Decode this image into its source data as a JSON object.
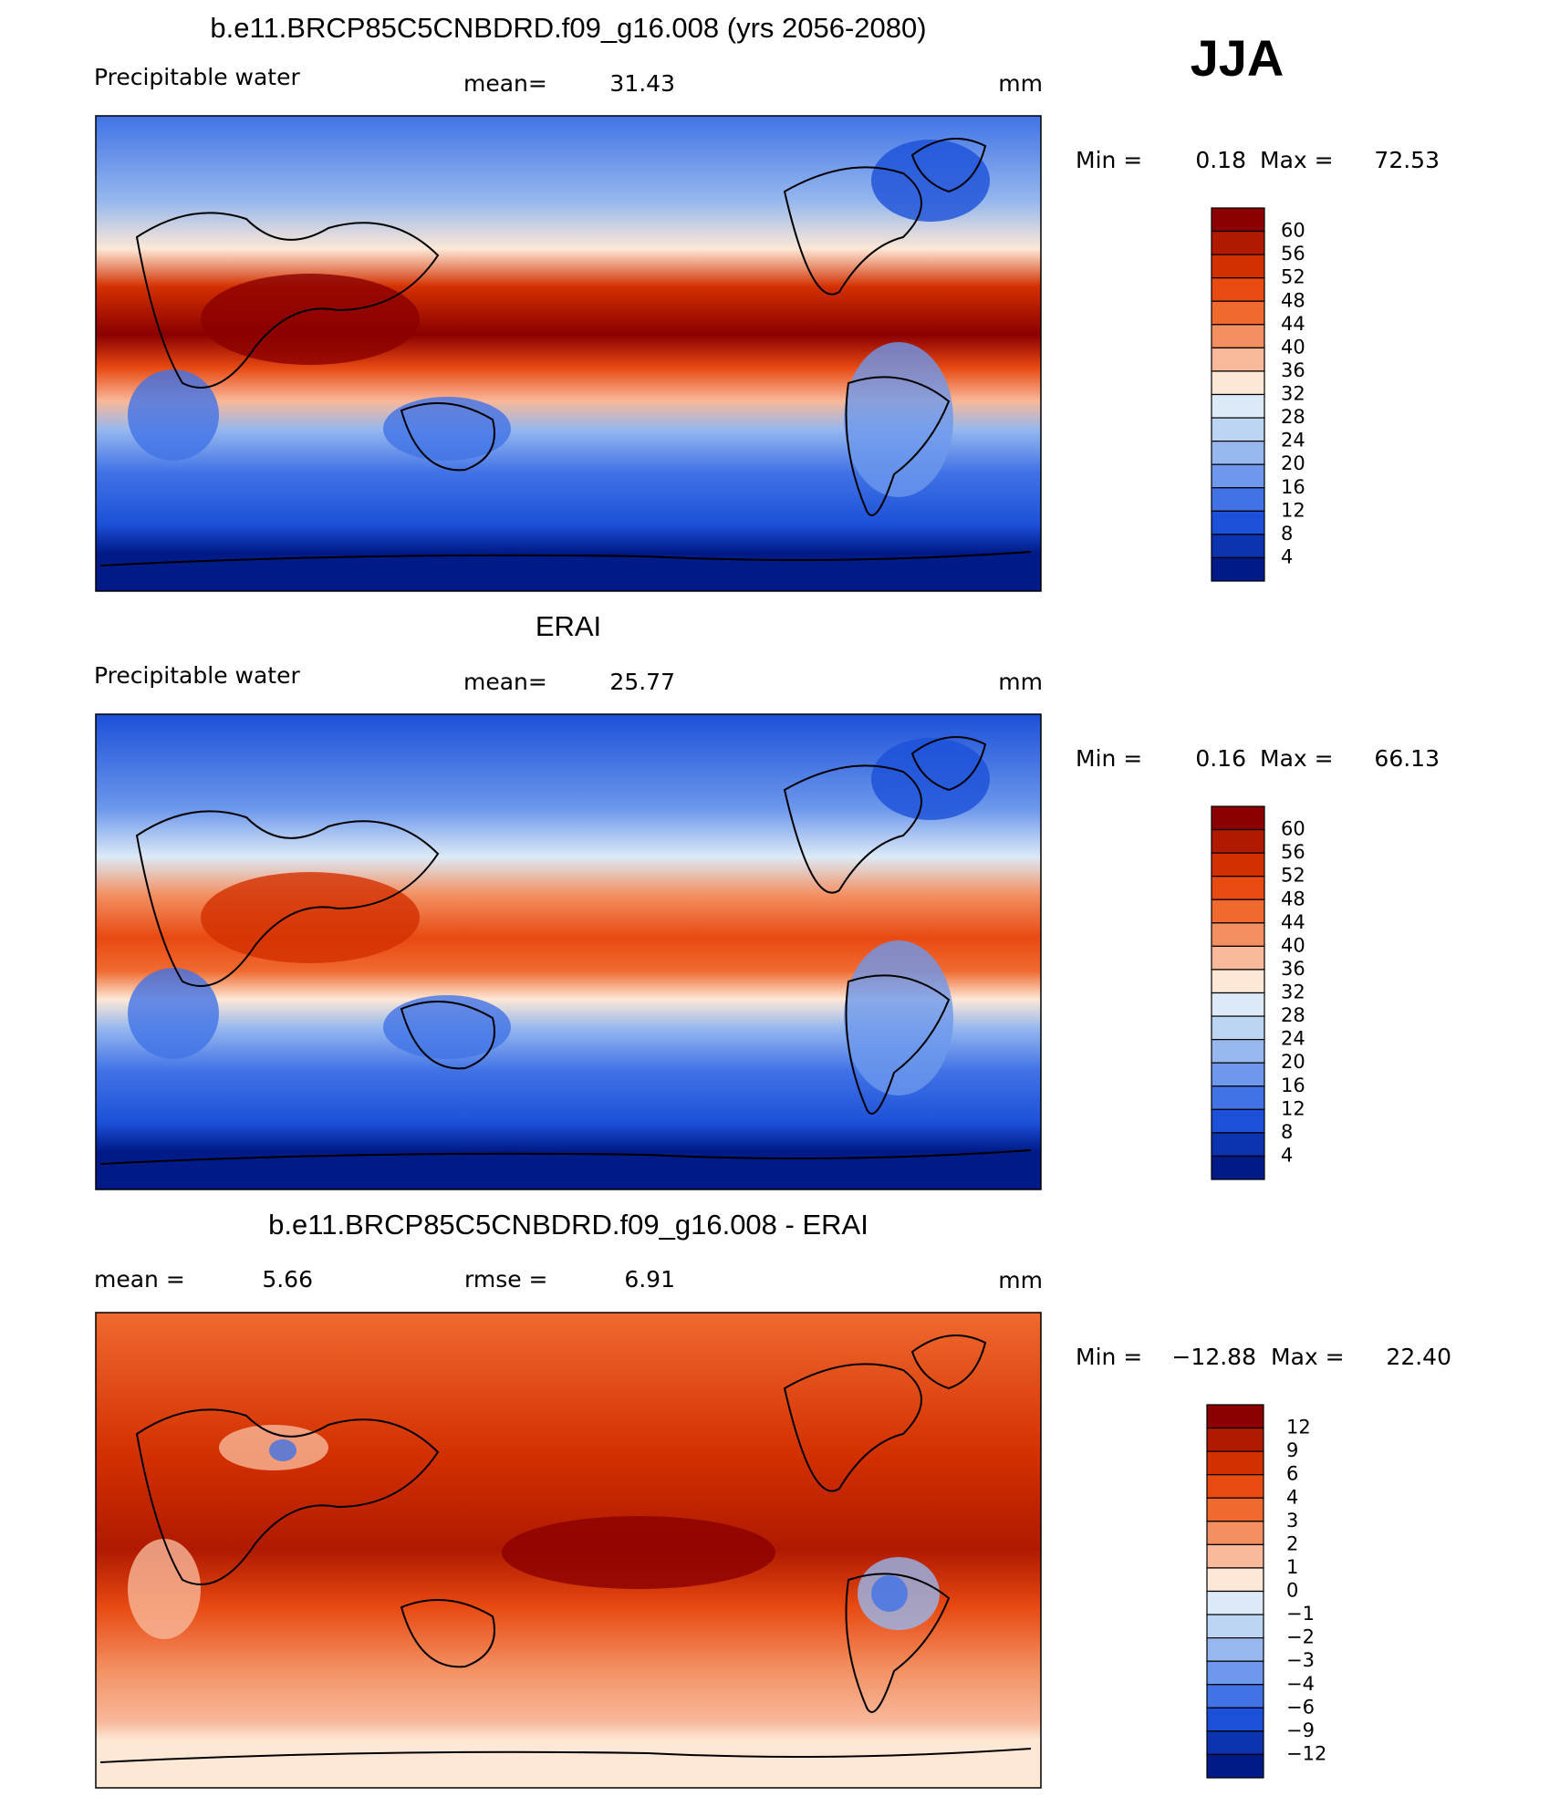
{
  "title": "JJA",
  "panels": [
    {
      "title": "b.e11.BRCP85C5CNBDRD.f09_g16.008 (yrs 2056-2080)",
      "variable": "Precipitable water",
      "mean_label": "mean=",
      "mean": 31.43,
      "units": "mm",
      "min_label": "Min =",
      "min": 0.18,
      "max_label": "Max =",
      "max": 72.53,
      "colorbar": {
        "levels": [
          60,
          56,
          52,
          48,
          44,
          40,
          36,
          32,
          28,
          24,
          20,
          16,
          12,
          8,
          4
        ],
        "colors": [
          "#8b0000",
          "#b01a00",
          "#d33000",
          "#e84a12",
          "#f06a30",
          "#f39062",
          "#f8b89a",
          "#fde8d6",
          "#dceaf7",
          "#bcd5f2",
          "#96b8ee",
          "#6d98ec",
          "#4173e6",
          "#1c50d8",
          "#0c33b0",
          "#001a88"
        ]
      }
    },
    {
      "title": "ERAI",
      "variable": "Precipitable water",
      "mean_label": "mean=",
      "mean": 25.77,
      "units": "mm",
      "min_label": "Min =",
      "min": 0.16,
      "max_label": "Max =",
      "max": 66.13,
      "colorbar": {
        "levels": [
          60,
          56,
          52,
          48,
          44,
          40,
          36,
          32,
          28,
          24,
          20,
          16,
          12,
          8,
          4
        ],
        "colors": [
          "#8b0000",
          "#b01a00",
          "#d33000",
          "#e84a12",
          "#f06a30",
          "#f39062",
          "#f8b89a",
          "#fde8d6",
          "#dceaf7",
          "#bcd5f2",
          "#96b8ee",
          "#6d98ec",
          "#4173e6",
          "#1c50d8",
          "#0c33b0",
          "#001a88"
        ]
      }
    },
    {
      "title": "b.e11.BRCP85C5CNBDRD.f09_g16.008 - ERAI",
      "mean_label": "mean =",
      "mean": 5.66,
      "rmse_label": "rmse =",
      "rmse": 6.91,
      "units": "mm",
      "min_label": "Min =",
      "min": {
        "value": -12.88,
        "label": "−12.88"
      },
      "max_label": "Max =",
      "max": {
        "value": 22.4,
        "label": "22.40"
      },
      "colorbar": {
        "levels": [
          12,
          9,
          6,
          4,
          3,
          2,
          1,
          0,
          {
            "value": -1,
            "label": "−1"
          },
          {
            "value": -2,
            "label": "−2"
          },
          {
            "value": -3,
            "label": "−3"
          },
          {
            "value": -4,
            "label": "−4"
          },
          {
            "value": -6,
            "label": "−6"
          },
          {
            "value": -9,
            "label": "−9"
          },
          {
            "value": -12,
            "label": "−12"
          }
        ],
        "colors": [
          "#8b0000",
          "#b01a00",
          "#d33000",
          "#e84a12",
          "#f06a30",
          "#f39062",
          "#f8b89a",
          "#fde8d6",
          "#dceaf7",
          "#bcd5f2",
          "#96b8ee",
          "#6d98ec",
          "#4173e6",
          "#1c50d8",
          "#0c33b0",
          "#001a88"
        ]
      }
    }
  ]
}
